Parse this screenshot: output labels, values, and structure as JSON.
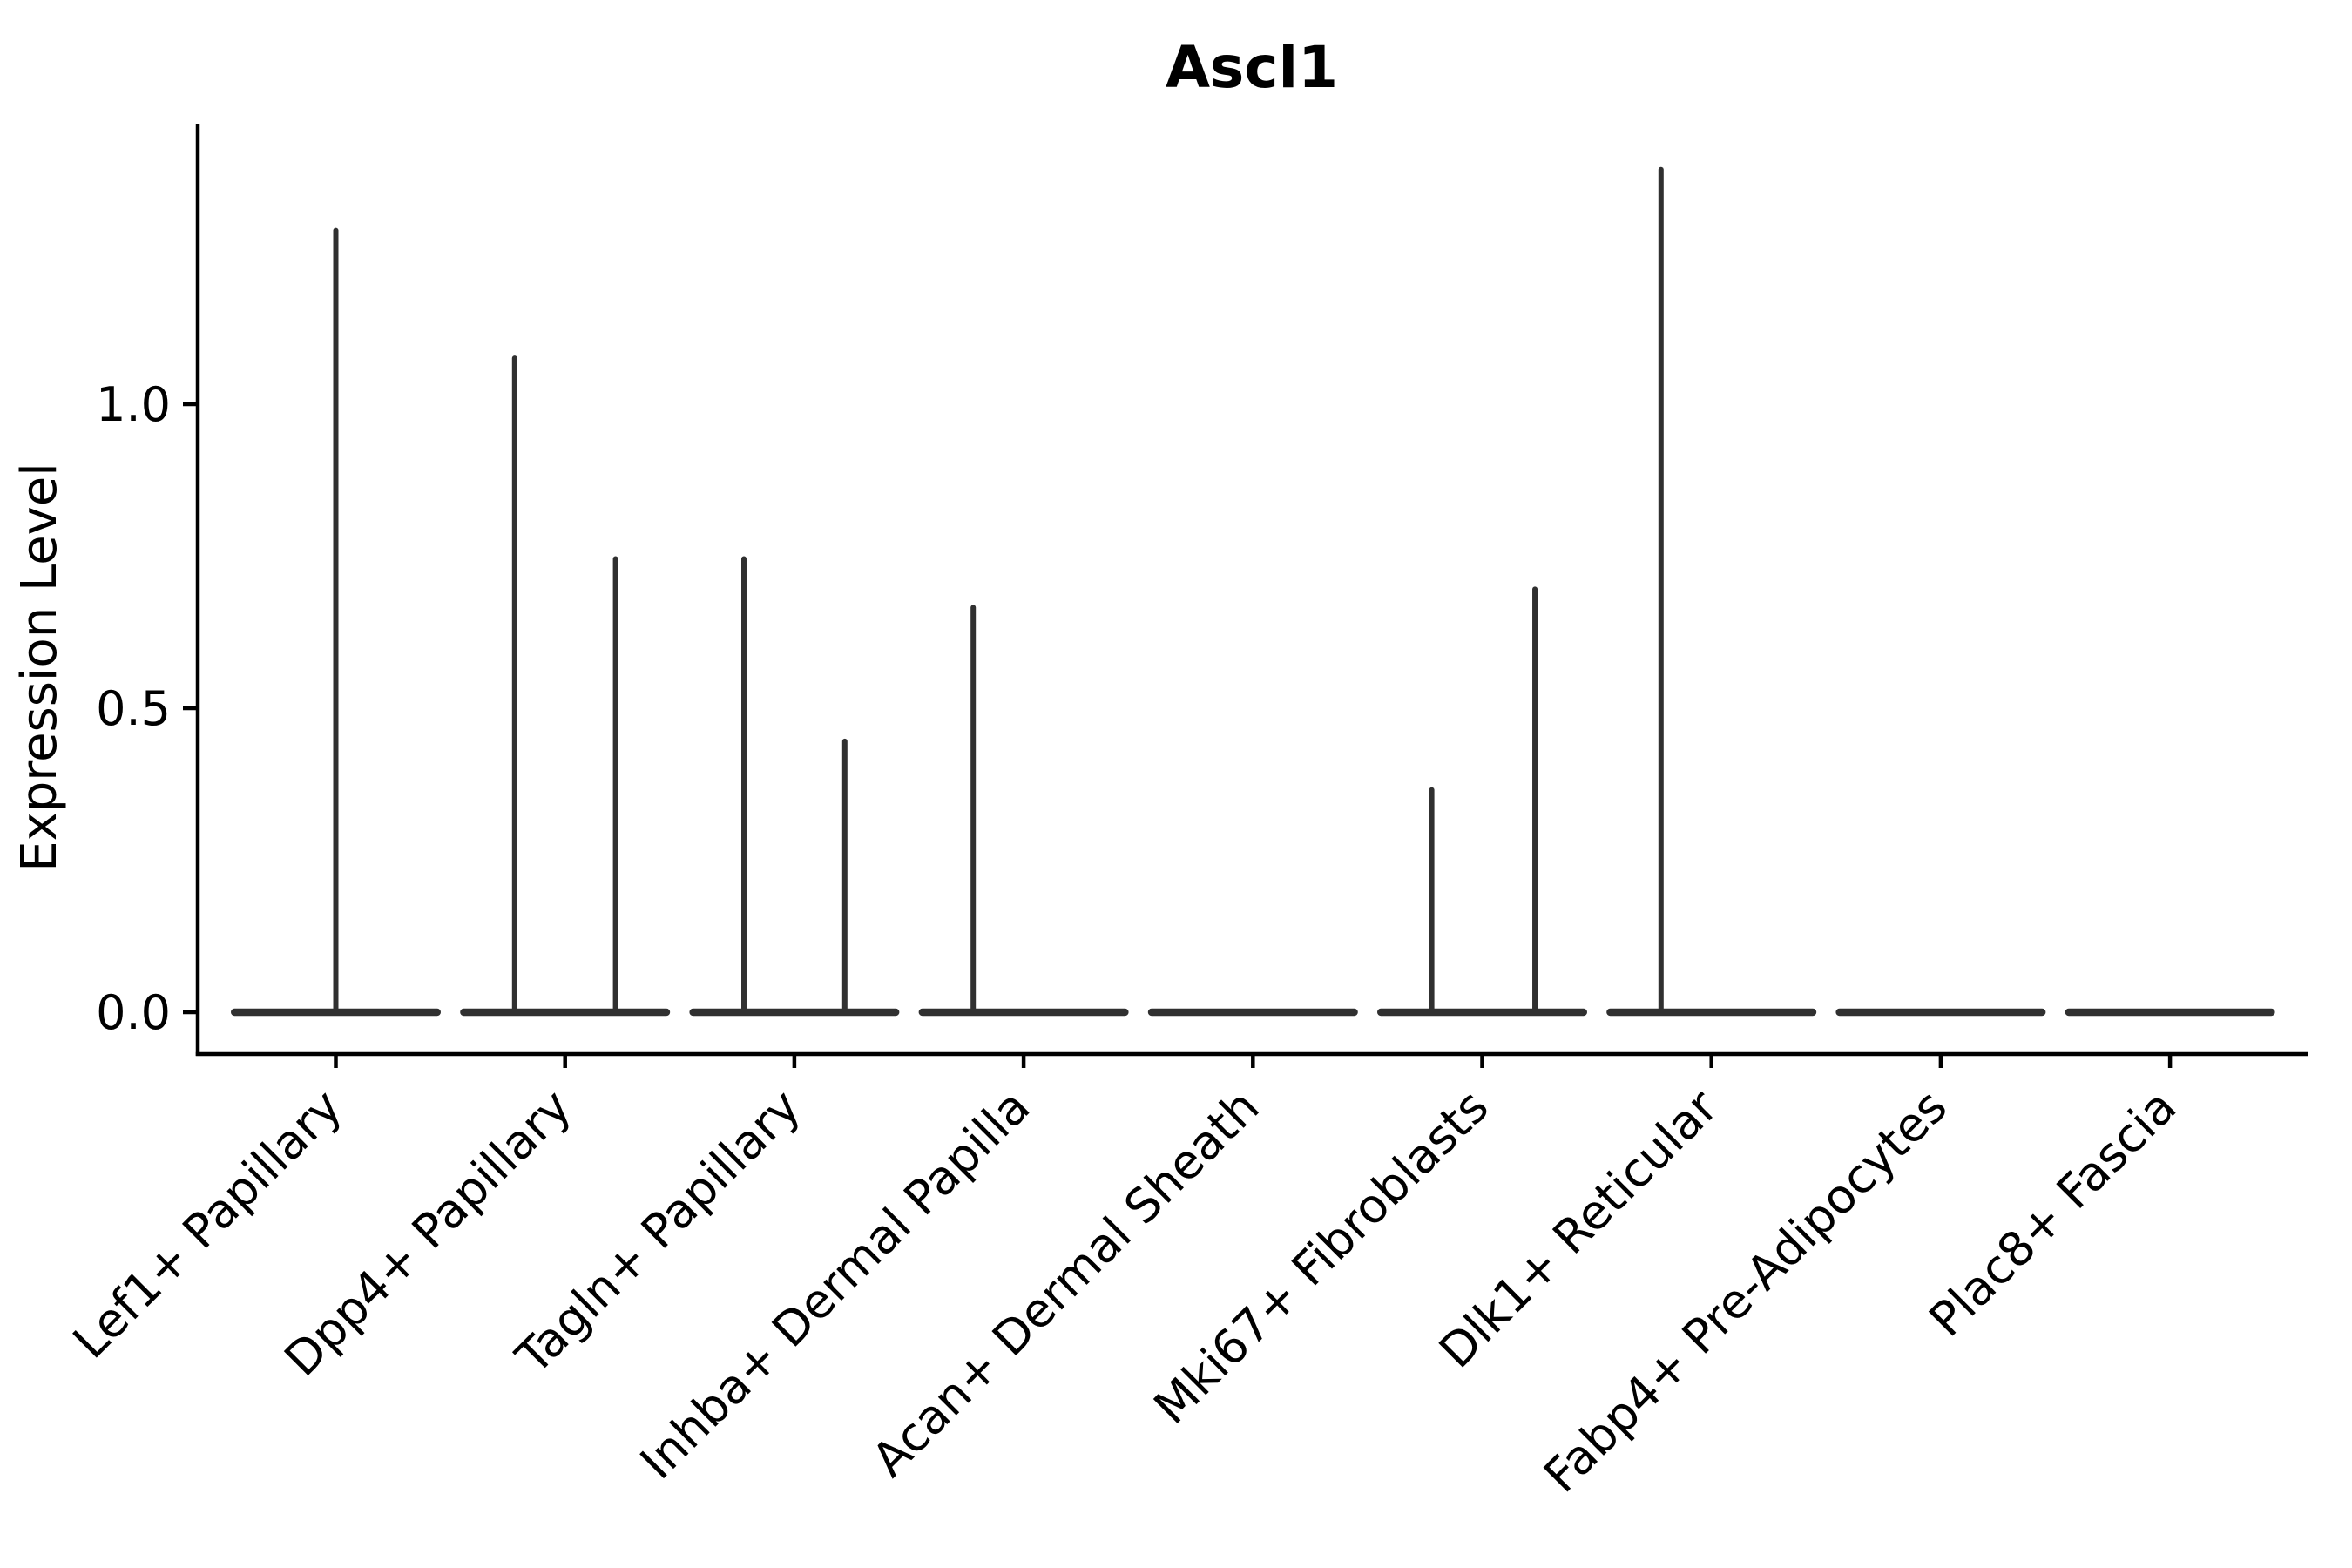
{
  "chart_data": {
    "type": "violin",
    "title": "Ascl1",
    "ylabel": "Expression Level",
    "xlabel": "",
    "ytick_labels": [
      "0.0",
      "0.5",
      "1.0"
    ],
    "ytick_values": [
      0.0,
      0.5,
      1.0
    ],
    "ylim": [
      -0.068,
      1.457
    ],
    "grid": false,
    "legend": "none",
    "background_color": "#ffffff",
    "violin_color": "#303030",
    "axis_color": "#000000",
    "categories": [
      "Lef1+ Papillary",
      "Dpp4+ Papillary",
      "Tagln+ Papillary",
      "Inhba+ Dermal Papilla",
      "Acan+ Dermal Sheath",
      "Mki67+ Fibroblasts",
      "Dlk1+ Reticular",
      "Fabp4+ Pre-Adipocytes",
      "Plac8+ Fascia"
    ],
    "violins": [
      {
        "category": "Lef1+ Papillary",
        "base_expression": 0,
        "spikes": [
          {
            "offset_frac": 0.0,
            "max_expression": 1.29
          }
        ]
      },
      {
        "category": "Dpp4+ Papillary",
        "base_expression": 0,
        "spikes": [
          {
            "offset_frac": -0.22,
            "max_expression": 1.08
          },
          {
            "offset_frac": 0.22,
            "max_expression": 0.75
          }
        ]
      },
      {
        "category": "Tagln+ Papillary",
        "base_expression": 0,
        "spikes": [
          {
            "offset_frac": -0.22,
            "max_expression": 0.75
          },
          {
            "offset_frac": 0.22,
            "max_expression": 0.45
          }
        ]
      },
      {
        "category": "Inhba+ Dermal Papilla",
        "base_expression": 0,
        "spikes": [
          {
            "offset_frac": -0.22,
            "max_expression": 0.67
          }
        ]
      },
      {
        "category": "Acan+ Dermal Sheath",
        "base_expression": 0,
        "spikes": []
      },
      {
        "category": "Mki67+ Fibroblasts",
        "base_expression": 0,
        "spikes": [
          {
            "offset_frac": -0.22,
            "max_expression": 0.37
          },
          {
            "offset_frac": 0.23,
            "max_expression": 0.7
          }
        ]
      },
      {
        "category": "Dlk1+ Reticular",
        "base_expression": 0,
        "spikes": [
          {
            "offset_frac": -0.22,
            "max_expression": 1.39
          }
        ]
      },
      {
        "category": "Fabp4+ Pre-Adipocytes",
        "base_expression": 0,
        "spikes": []
      },
      {
        "category": "Plac8+ Fascia",
        "base_expression": 0,
        "spikes": []
      }
    ]
  }
}
